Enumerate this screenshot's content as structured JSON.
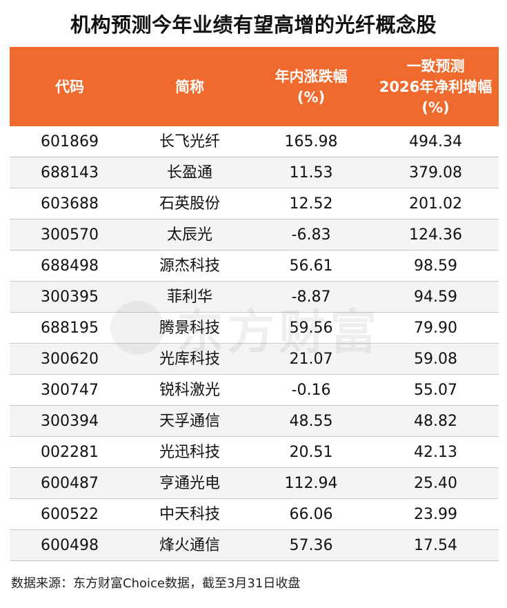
{
  "title": "机构预测今年业绩有望高增的光纤概念股",
  "table": {
    "headers": [
      {
        "line1": "代码",
        "line2": "",
        "line3": ""
      },
      {
        "line1": "简称",
        "line2": "",
        "line3": ""
      },
      {
        "line1": "年内涨跌幅",
        "line2": "(%)",
        "line3": ""
      },
      {
        "line1": "一致预测",
        "line2": "2026年净利增幅",
        "line3": "(%)"
      }
    ],
    "rows": [
      {
        "code": "601869",
        "name": "长飞光纤",
        "change": "165.98",
        "growth": "494.34"
      },
      {
        "code": "688143",
        "name": "长盈通",
        "change": "11.53",
        "growth": "379.08"
      },
      {
        "code": "603688",
        "name": "石英股份",
        "change": "12.52",
        "growth": "201.02"
      },
      {
        "code": "300570",
        "name": "太辰光",
        "change": "-6.83",
        "growth": "124.36"
      },
      {
        "code": "688498",
        "name": "源杰科技",
        "change": "56.61",
        "growth": "98.59"
      },
      {
        "code": "300395",
        "name": "菲利华",
        "change": "-8.87",
        "growth": "94.59"
      },
      {
        "code": "688195",
        "name": "腾景科技",
        "change": "59.56",
        "growth": "79.90"
      },
      {
        "code": "300620",
        "name": "光库科技",
        "change": "21.07",
        "growth": "59.08"
      },
      {
        "code": "300747",
        "name": "锐科激光",
        "change": "-0.16",
        "growth": "55.07"
      },
      {
        "code": "300394",
        "name": "天孚通信",
        "change": "48.55",
        "growth": "48.82"
      },
      {
        "code": "002281",
        "name": "光迅科技",
        "change": "20.51",
        "growth": "42.13"
      },
      {
        "code": "600487",
        "name": "亨通光电",
        "change": "112.94",
        "growth": "25.40"
      },
      {
        "code": "600522",
        "name": "中天科技",
        "change": "66.06",
        "growth": "23.99"
      },
      {
        "code": "600498",
        "name": "烽火通信",
        "change": "57.36",
        "growth": "17.54"
      }
    ]
  },
  "watermark": {
    "text": "东方财富"
  },
  "footer": "数据来源：东方财富Choice数据，截至3月31日收盘",
  "colors": {
    "header_bg": "#ef6a2c",
    "header_text": "#ffffff",
    "row_alt_bg": "#f4f4f4",
    "row_border": "#c8c8c8"
  }
}
